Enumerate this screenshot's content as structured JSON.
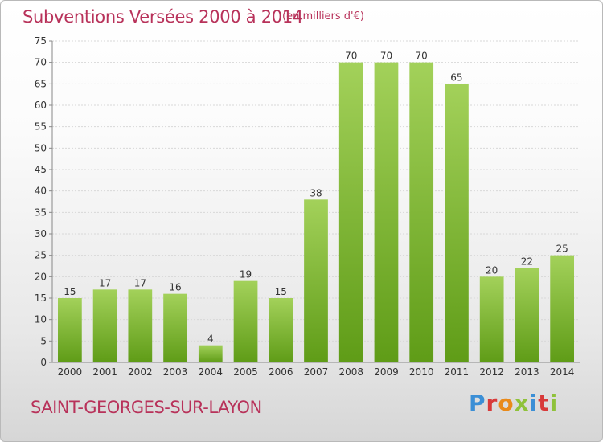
{
  "header": {
    "title": "Subventions Versées 2000 à 2014",
    "unit_note": "(en milliers d'€)"
  },
  "footer": {
    "commune": "SAINT-GEORGES-SUR-LAYON",
    "logo_text": "Proxiti"
  },
  "colors": {
    "title": "#b8325a",
    "bar_top": "#a3d15a",
    "bar_bottom": "#5f9c17",
    "grid": "#d8d8d8",
    "axis_text": "#333333"
  },
  "chart_data": {
    "type": "bar",
    "title": "Subventions Versées 2000 à 2014",
    "subtitle": "(en milliers d'€)",
    "categories": [
      "2000",
      "2001",
      "2002",
      "2003",
      "2004",
      "2005",
      "2006",
      "2007",
      "2008",
      "2009",
      "2010",
      "2011",
      "2012",
      "2013",
      "2014"
    ],
    "values": [
      15,
      17,
      17,
      16,
      4,
      19,
      15,
      38,
      70,
      70,
      70,
      65,
      20,
      22,
      25
    ],
    "ylim": [
      0,
      75
    ],
    "yticks": [
      0,
      5,
      10,
      15,
      20,
      25,
      30,
      35,
      40,
      45,
      50,
      55,
      60,
      65,
      70,
      75
    ],
    "grid": true,
    "data_labels": true
  }
}
